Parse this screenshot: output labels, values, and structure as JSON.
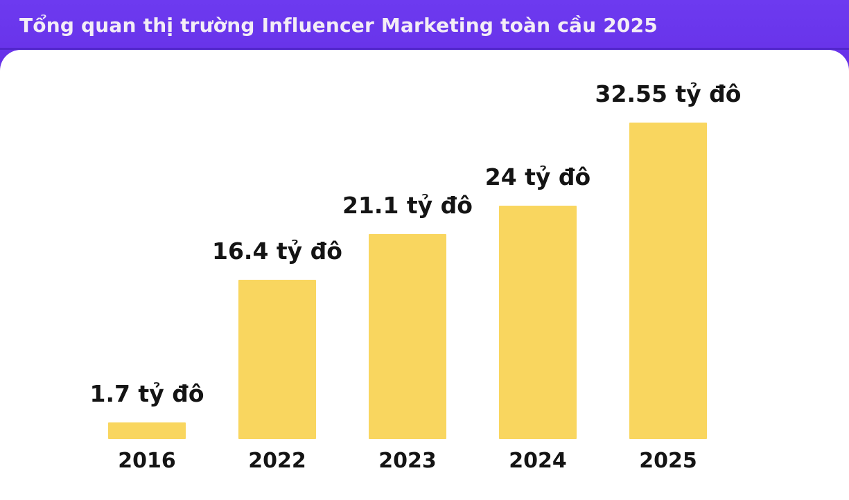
{
  "header": {
    "title": "Tổng quan thị trường Influencer Marketing toàn cầu 2025",
    "background_color": "#6733EB",
    "text_color": "#F3EDF6"
  },
  "chart_data": {
    "type": "bar",
    "title": "Tổng quan thị trường Influencer Marketing toàn cầu 2025",
    "categories": [
      "2016",
      "2022",
      "2023",
      "2024",
      "2025"
    ],
    "values": [
      1.7,
      16.4,
      21.1,
      24,
      32.55
    ],
    "value_labels": [
      "1.7 tỷ đô",
      "16.4 tỷ đô",
      "21.1 tỷ đô",
      "24 tỷ đô",
      "32.55 tỷ đô"
    ],
    "unit": "tỷ đô",
    "xlabel": "",
    "ylabel": "",
    "ylim": [
      0,
      34
    ],
    "grid": false,
    "legend": false,
    "bar_color": "#F9D65F",
    "label_color": "#141414"
  }
}
